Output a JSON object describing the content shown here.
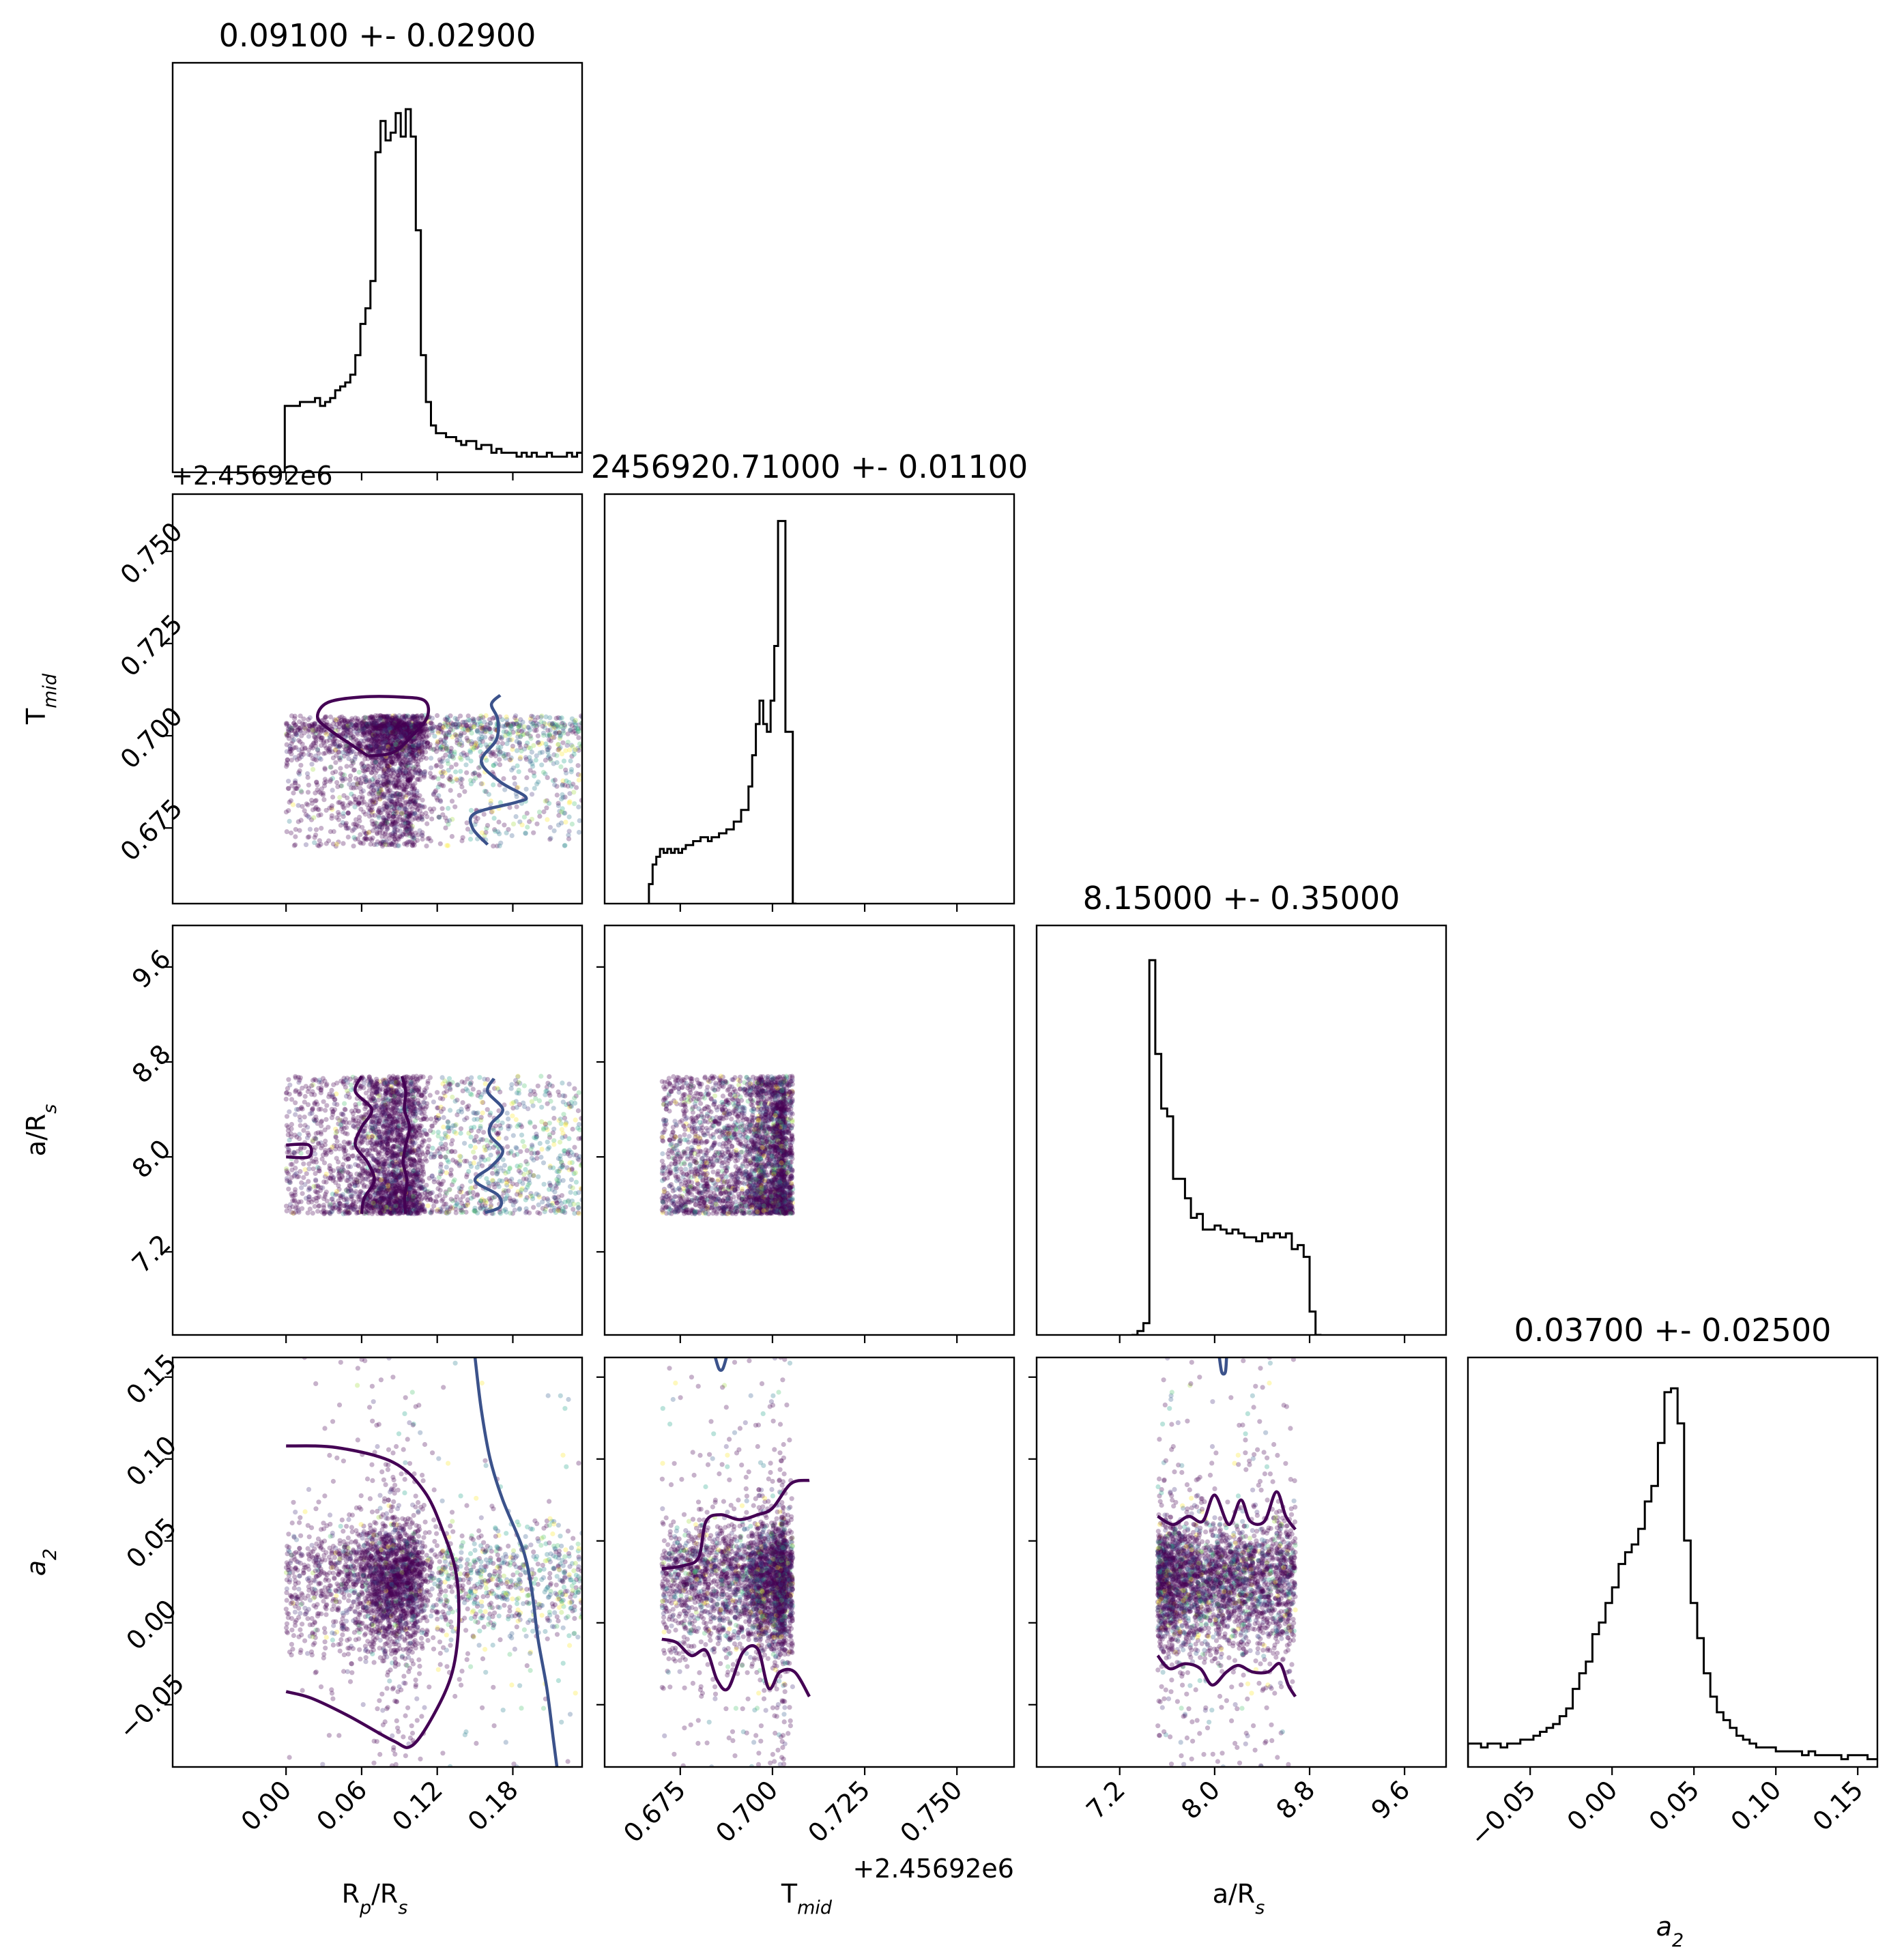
{
  "chart_data": {
    "type": "scatter",
    "layout": "corner",
    "parameters": [
      {
        "key": "rp",
        "label": "R",
        "label_sub": "p",
        "label_tail": "/R",
        "label_sub2": "s",
        "range": [
          -0.09,
          0.235
        ],
        "ticks": [
          0.0,
          0.06,
          0.12,
          0.18
        ],
        "tick_labels": [
          "0.00",
          "0.06",
          "0.12",
          "0.18"
        ],
        "offset": "+2.45692e6",
        "title": "0.09100 +- 0.02900"
      },
      {
        "key": "tmid",
        "label": "T",
        "label_sub": "mid",
        "label_tail": "",
        "label_sub2": "",
        "range": [
          0.6545,
          0.7655
        ],
        "ticks": [
          0.675,
          0.7,
          0.725,
          0.75
        ],
        "tick_labels": [
          "0.675",
          "0.700",
          "0.725",
          "0.750"
        ],
        "offset": "+2.45692e6",
        "title": "2456920.71000 +- 0.01100"
      },
      {
        "key": "ars",
        "label": "a/R",
        "label_sub": "s",
        "label_tail": "",
        "label_sub2": "",
        "range": [
          6.5,
          9.95
        ],
        "ticks": [
          7.2,
          8.0,
          8.8,
          9.6
        ],
        "tick_labels": [
          "7.2",
          "8.0",
          "8.8",
          "9.6"
        ],
        "offset": "",
        "title": "8.15000 +- 0.35000"
      },
      {
        "key": "a2",
        "label": "a",
        "label_sub": "2",
        "label_tail": "",
        "label_sub2": "",
        "italic": true,
        "range": [
          -0.088,
          0.162
        ],
        "ticks": [
          -0.05,
          0.0,
          0.05,
          0.1,
          0.15
        ],
        "tick_labels": [
          "−0.05",
          "0.00",
          "0.05",
          "0.10",
          "0.15"
        ],
        "offset": "",
        "title": "0.03700 +- 0.02500"
      }
    ],
    "scatter_colormap": "viridis",
    "colors": {
      "contour_inner": "#440154",
      "contour_outer": "#3b528b",
      "hist": "#000000"
    },
    "histograms": {
      "rp": {
        "edges_start": -0.005,
        "bin_width": 0.004,
        "values": [
          0.0,
          0.17,
          0.17,
          0.17,
          0.18,
          0.18,
          0.18,
          0.19,
          0.17,
          0.18,
          0.19,
          0.21,
          0.22,
          0.23,
          0.25,
          0.3,
          0.38,
          0.42,
          0.49,
          0.82,
          0.9,
          0.85,
          0.87,
          0.92,
          0.86,
          0.93,
          0.86,
          0.62,
          0.3,
          0.18,
          0.12,
          0.1,
          0.1,
          0.09,
          0.09,
          0.08,
          0.07,
          0.08,
          0.08,
          0.06,
          0.07,
          0.07,
          0.05,
          0.06,
          0.05,
          0.05,
          0.05,
          0.04,
          0.05,
          0.04,
          0.05,
          0.04,
          0.04,
          0.05,
          0.04,
          0.04,
          0.04,
          0.05,
          0.04,
          0.05
        ]
      },
      "tmid": {
        "edges_start": 0.6665,
        "bin_width": 0.001,
        "values": [
          0.05,
          0.1,
          0.12,
          0.14,
          0.13,
          0.14,
          0.13,
          0.14,
          0.13,
          0.14,
          0.15,
          0.15,
          0.16,
          0.16,
          0.17,
          0.17,
          0.16,
          0.17,
          0.17,
          0.18,
          0.18,
          0.19,
          0.19,
          0.21,
          0.21,
          0.24,
          0.24,
          0.3,
          0.38,
          0.46,
          0.52,
          0.46,
          0.44,
          0.52,
          0.66,
          0.98,
          0.98,
          0.44,
          0.44,
          0.0
        ]
      },
      "ars": {
        "edges_start": 7.3,
        "bin_width": 0.05,
        "values": [
          0.0,
          0.01,
          0.03,
          0.96,
          0.72,
          0.58,
          0.56,
          0.4,
          0.4,
          0.35,
          0.3,
          0.31,
          0.27,
          0.27,
          0.28,
          0.27,
          0.26,
          0.27,
          0.26,
          0.25,
          0.25,
          0.24,
          0.26,
          0.25,
          0.26,
          0.25,
          0.26,
          0.22,
          0.23,
          0.2,
          0.06,
          0.0
        ]
      },
      "a2": {
        "edges_start": -0.088,
        "bin_width": 0.004,
        "values": [
          0.06,
          0.06,
          0.05,
          0.06,
          0.06,
          0.05,
          0.06,
          0.06,
          0.07,
          0.07,
          0.08,
          0.09,
          0.1,
          0.11,
          0.13,
          0.15,
          0.2,
          0.24,
          0.27,
          0.34,
          0.37,
          0.42,
          0.46,
          0.52,
          0.55,
          0.57,
          0.61,
          0.68,
          0.72,
          0.83,
          0.96,
          0.97,
          0.88,
          0.58,
          0.42,
          0.33,
          0.24,
          0.18,
          0.14,
          0.12,
          0.1,
          0.08,
          0.07,
          0.06,
          0.05,
          0.05,
          0.05,
          0.04,
          0.04,
          0.04,
          0.04,
          0.03,
          0.04,
          0.03,
          0.03,
          0.03,
          0.03,
          0.02,
          0.03,
          0.03,
          0.03,
          0.02,
          0.02
        ]
      }
    },
    "samples": {
      "rp": {
        "min": 0.0,
        "max": 0.235,
        "core": [
          0.056,
          0.102
        ]
      },
      "tmid": {
        "min": 0.67,
        "max": 0.7105,
        "core": [
          0.6995,
          0.7105
        ]
      },
      "ars": {
        "min": 7.52,
        "max": 8.68,
        "core": [
          7.52,
          8.68
        ]
      },
      "a2": {
        "min": -0.088,
        "max": 0.162,
        "core": [
          0.0,
          0.05
        ]
      }
    },
    "contours": [
      {
        "panel": "tmid-rp",
        "level": "inner",
        "points": [
          [
            0.065,
            0.6945
          ],
          [
            0.05,
            0.698
          ],
          [
            0.035,
            0.7015
          ],
          [
            0.025,
            0.705
          ],
          [
            0.033,
            0.709
          ],
          [
            0.06,
            0.7105
          ],
          [
            0.09,
            0.7105
          ],
          [
            0.11,
            0.7095
          ],
          [
            0.112,
            0.705
          ],
          [
            0.1,
            0.7
          ],
          [
            0.085,
            0.6955
          ],
          [
            0.065,
            0.6945
          ]
        ]
      },
      {
        "panel": "tmid-rp",
        "level": "outer",
        "points": [
          [
            0.16,
            0.6705
          ],
          [
            0.148,
            0.675
          ],
          [
            0.15,
            0.679
          ],
          [
            0.183,
            0.682
          ],
          [
            0.19,
            0.6835
          ],
          [
            0.17,
            0.6875
          ],
          [
            0.155,
            0.693
          ],
          [
            0.167,
            0.699
          ],
          [
            0.168,
            0.7045
          ],
          [
            0.163,
            0.7085
          ],
          [
            0.17,
            0.711
          ]
        ]
      },
      {
        "panel": "ars-rp",
        "level": "inner",
        "points": [
          [
            0.0,
            8.1
          ],
          [
            0.018,
            8.1
          ],
          [
            0.018,
            8.0
          ],
          [
            0.0,
            8.0
          ]
        ]
      },
      {
        "panel": "ars-rp",
        "level": "inner",
        "points": [
          [
            0.06,
            8.68
          ],
          [
            0.055,
            8.55
          ],
          [
            0.068,
            8.4
          ],
          [
            0.06,
            8.25
          ],
          [
            0.055,
            8.1
          ],
          [
            0.065,
            7.95
          ],
          [
            0.07,
            7.8
          ],
          [
            0.062,
            7.65
          ],
          [
            0.06,
            7.52
          ]
        ]
      },
      {
        "panel": "ars-rp",
        "level": "inner",
        "points": [
          [
            0.092,
            8.68
          ],
          [
            0.095,
            8.55
          ],
          [
            0.094,
            8.4
          ],
          [
            0.098,
            8.25
          ],
          [
            0.095,
            8.1
          ],
          [
            0.093,
            7.95
          ],
          [
            0.096,
            7.8
          ],
          [
            0.094,
            7.65
          ],
          [
            0.095,
            7.52
          ]
        ]
      },
      {
        "panel": "ars-rp",
        "level": "outer",
        "points": [
          [
            0.165,
            8.66
          ],
          [
            0.16,
            8.55
          ],
          [
            0.172,
            8.4
          ],
          [
            0.163,
            8.28
          ],
          [
            0.162,
            8.18
          ],
          [
            0.172,
            8.05
          ],
          [
            0.163,
            7.92
          ],
          [
            0.15,
            7.8
          ],
          [
            0.168,
            7.68
          ],
          [
            0.17,
            7.58
          ],
          [
            0.158,
            7.53
          ]
        ]
      },
      {
        "panel": "a2-rp",
        "level": "inner",
        "points": [
          [
            0.0,
            0.108
          ],
          [
            0.04,
            0.107
          ],
          [
            0.085,
            0.098
          ],
          [
            0.11,
            0.08
          ],
          [
            0.125,
            0.055
          ],
          [
            0.135,
            0.03
          ],
          [
            0.137,
            0.0
          ],
          [
            0.132,
            -0.03
          ],
          [
            0.118,
            -0.055
          ],
          [
            0.1,
            -0.075
          ],
          [
            0.085,
            -0.072
          ],
          [
            0.05,
            -0.057
          ],
          [
            0.02,
            -0.046
          ],
          [
            0.0,
            -0.042
          ]
        ]
      },
      {
        "panel": "a2-rp",
        "level": "outer",
        "points": [
          [
            0.15,
            0.162
          ],
          [
            0.155,
            0.13
          ],
          [
            0.162,
            0.1
          ],
          [
            0.172,
            0.075
          ],
          [
            0.188,
            0.045
          ],
          [
            0.195,
            0.02
          ],
          [
            0.2,
            -0.01
          ],
          [
            0.207,
            -0.04
          ],
          [
            0.212,
            -0.07
          ],
          [
            0.215,
            -0.088
          ]
        ]
      },
      {
        "panel": "a2-tmid",
        "level": "inner",
        "points": [
          [
            0.67,
            0.033
          ],
          [
            0.676,
            0.035
          ],
          [
            0.68,
            0.04
          ],
          [
            0.682,
            0.062
          ],
          [
            0.686,
            0.066
          ],
          [
            0.691,
            0.063
          ],
          [
            0.696,
            0.066
          ],
          [
            0.7,
            0.07
          ],
          [
            0.705,
            0.085
          ],
          [
            0.71,
            0.087
          ]
        ]
      },
      {
        "panel": "a2-tmid",
        "level": "inner",
        "points": [
          [
            0.67,
            -0.01
          ],
          [
            0.674,
            -0.012
          ],
          [
            0.678,
            -0.02
          ],
          [
            0.682,
            -0.017
          ],
          [
            0.685,
            -0.035
          ],
          [
            0.688,
            -0.04
          ],
          [
            0.692,
            -0.018
          ],
          [
            0.696,
            -0.016
          ],
          [
            0.699,
            -0.04
          ],
          [
            0.702,
            -0.03
          ],
          [
            0.706,
            -0.03
          ],
          [
            0.71,
            -0.045
          ]
        ]
      },
      {
        "panel": "a2-tmid",
        "level": "outer",
        "points": [
          [
            0.6845,
            0.162
          ],
          [
            0.6855,
            0.155
          ],
          [
            0.6865,
            0.155
          ],
          [
            0.6875,
            0.162
          ]
        ]
      },
      {
        "panel": "a2-ars",
        "level": "inner",
        "points": [
          [
            7.52,
            0.065
          ],
          [
            7.65,
            0.06
          ],
          [
            7.78,
            0.065
          ],
          [
            7.9,
            0.062
          ],
          [
            8.0,
            0.078
          ],
          [
            8.12,
            0.06
          ],
          [
            8.22,
            0.075
          ],
          [
            8.3,
            0.062
          ],
          [
            8.42,
            0.062
          ],
          [
            8.52,
            0.08
          ],
          [
            8.6,
            0.065
          ],
          [
            8.68,
            0.057
          ]
        ]
      },
      {
        "panel": "a2-ars",
        "level": "inner",
        "points": [
          [
            7.52,
            -0.02
          ],
          [
            7.62,
            -0.028
          ],
          [
            7.75,
            -0.025
          ],
          [
            7.88,
            -0.028
          ],
          [
            7.98,
            -0.038
          ],
          [
            8.1,
            -0.03
          ],
          [
            8.2,
            -0.026
          ],
          [
            8.32,
            -0.03
          ],
          [
            8.45,
            -0.03
          ],
          [
            8.55,
            -0.025
          ],
          [
            8.62,
            -0.038
          ],
          [
            8.68,
            -0.045
          ]
        ]
      },
      {
        "panel": "a2-ars",
        "level": "outer",
        "points": [
          [
            8.04,
            0.162
          ],
          [
            8.06,
            0.153
          ],
          [
            8.09,
            0.153
          ],
          [
            8.1,
            0.162
          ]
        ]
      }
    ]
  }
}
